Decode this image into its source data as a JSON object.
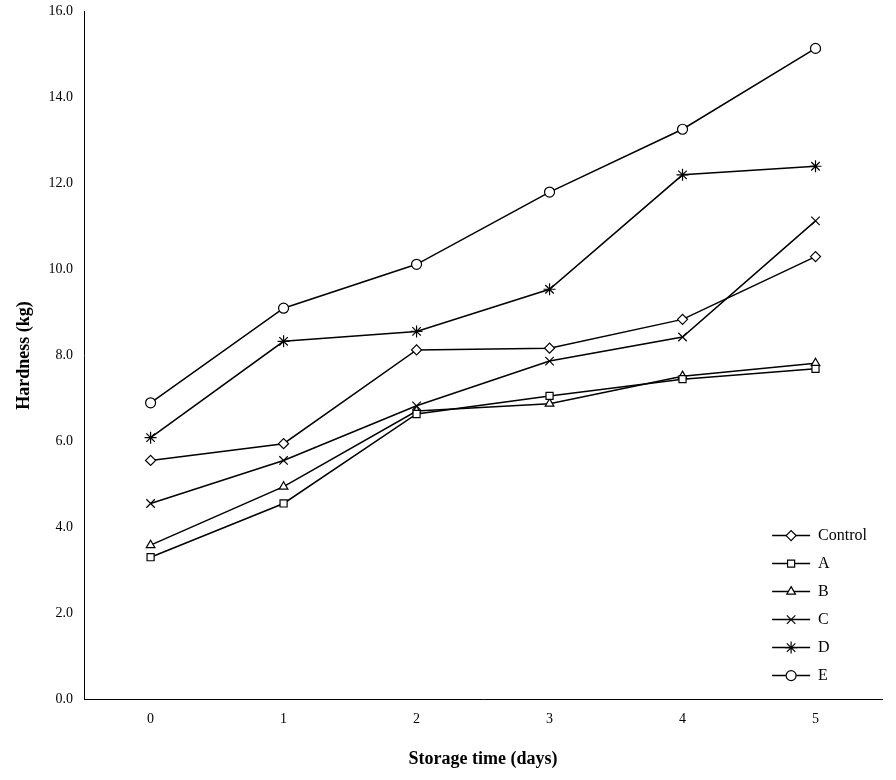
{
  "chart_data": {
    "type": "line",
    "x_label": "Storage time (days)",
    "y_label": "Hardness (kg)",
    "categories": [
      "0",
      "1",
      "2",
      "3",
      "4",
      "5"
    ],
    "series": [
      {
        "name": "Control",
        "color": "#000000",
        "marker": "diamond",
        "values": [
          5.56,
          5.95,
          8.13,
          8.17,
          8.84,
          10.3
        ]
      },
      {
        "name": "A",
        "color": "#000000",
        "marker": "square",
        "values": [
          3.31,
          4.56,
          6.64,
          7.06,
          7.45,
          7.69
        ]
      },
      {
        "name": "B",
        "color": "#000000",
        "marker": "triangle",
        "values": [
          3.59,
          4.95,
          6.71,
          6.88,
          7.52,
          7.82
        ]
      },
      {
        "name": "C",
        "color": "#000000",
        "marker": "x",
        "values": [
          4.56,
          5.56,
          6.83,
          7.87,
          8.43,
          11.13
        ]
      },
      {
        "name": "D",
        "color": "#000000",
        "marker": "star",
        "values": [
          6.09,
          8.33,
          8.56,
          9.54,
          12.2,
          12.4
        ]
      },
      {
        "name": "E",
        "color": "#000000",
        "marker": "circle",
        "values": [
          6.9,
          9.1,
          10.12,
          11.8,
          13.26,
          15.14
        ]
      }
    ],
    "ylim": [
      0,
      16
    ],
    "yticks": [
      {
        "value": 0,
        "label": "0.0"
      },
      {
        "value": 2,
        "label": "2.0"
      },
      {
        "value": 4,
        "label": "4.0"
      },
      {
        "value": 6,
        "label": "6.0"
      },
      {
        "value": 8,
        "label": "8.0"
      },
      {
        "value": 10,
        "label": "10.0"
      },
      {
        "value": 12,
        "label": "12.0"
      },
      {
        "value": 14,
        "label": "14.0"
      },
      {
        "value": 16,
        "label": "16.0"
      }
    ],
    "grid": false,
    "legend": "lower right"
  }
}
